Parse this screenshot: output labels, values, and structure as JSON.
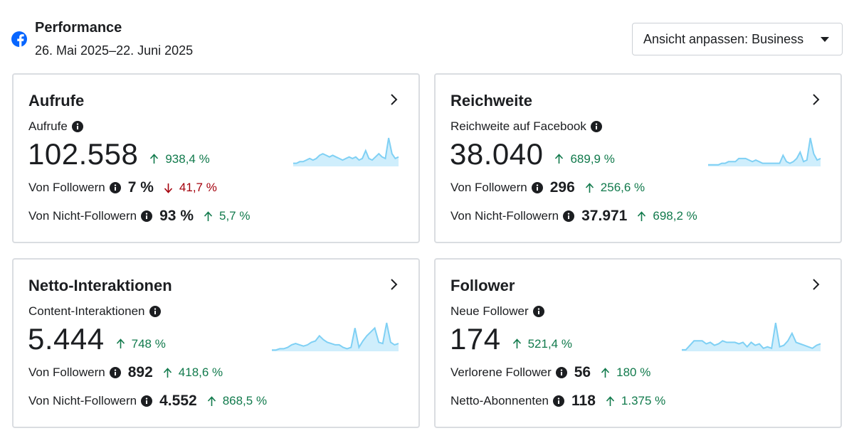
{
  "header": {
    "icon": "facebook-icon",
    "title": "Performance",
    "date_range": "26. Mai 2025–22. Juni 2025",
    "view_button": "Ansicht anpassen: Business"
  },
  "colors": {
    "up": "#117a4c",
    "down": "#a4000c",
    "spark_line": "#7fd0f4",
    "spark_fill": "#cfeefc",
    "facebook": "#0866ff"
  },
  "cards": [
    {
      "title": "Aufrufe",
      "metric_label": "Aufrufe",
      "value": "102.558",
      "delta": "938,4 %",
      "delta_dir": "up",
      "rows": [
        {
          "label": "Von Followern",
          "value": "7 %",
          "delta": "41,7 %",
          "dir": "down"
        },
        {
          "label": "Von Nicht-Followern",
          "value": "93 %",
          "delta": "5,7 %",
          "dir": "up"
        }
      ],
      "sparkline": [
        2,
        2,
        3,
        3,
        4,
        5,
        4,
        5,
        7,
        8,
        7,
        6,
        7,
        6,
        5,
        4,
        5,
        6,
        5,
        6,
        4,
        5,
        10,
        5,
        4,
        6,
        8,
        6,
        5,
        18,
        8,
        5,
        6
      ]
    },
    {
      "title": "Reichweite",
      "metric_label": "Reichweite auf Facebook",
      "value": "38.040",
      "delta": "689,9 %",
      "delta_dir": "up",
      "rows": [
        {
          "label": "Von Followern",
          "value": "296",
          "delta": "256,6 %",
          "dir": "up"
        },
        {
          "label": "Von Nicht-Followern",
          "value": "37.971",
          "delta": "698,2 %",
          "dir": "up"
        }
      ],
      "sparkline": [
        1,
        1,
        1,
        1,
        2,
        2,
        3,
        3,
        3,
        5,
        5,
        5,
        4,
        3,
        4,
        3,
        2,
        2,
        2,
        2,
        2,
        2,
        7,
        3,
        2,
        3,
        5,
        9,
        3,
        4,
        18,
        8,
        4,
        5
      ]
    },
    {
      "title": "Netto-Interaktionen",
      "metric_label": "Content-Interaktionen",
      "value": "5.444",
      "delta": "748 %",
      "delta_dir": "up",
      "rows": [
        {
          "label": "Von Followern",
          "value": "892",
          "delta": "418,6 %",
          "dir": "up"
        },
        {
          "label": "Von Nicht-Followern",
          "value": "4.552",
          "delta": "868,5 %",
          "dir": "up"
        }
      ],
      "sparkline": [
        1,
        1,
        2,
        2,
        3,
        5,
        6,
        5,
        4,
        5,
        7,
        8,
        12,
        9,
        7,
        6,
        5,
        5,
        3,
        2,
        3,
        18,
        3,
        8,
        12,
        15,
        18,
        7,
        6,
        22,
        7,
        5,
        6
      ]
    },
    {
      "title": "Follower",
      "metric_label": "Neue Follower",
      "value": "174",
      "delta": "521,4 %",
      "delta_dir": "up",
      "rows": [
        {
          "label": "Verlorene Follower",
          "value": "56",
          "delta": "180 %",
          "dir": "up"
        },
        {
          "label": "Netto-Abonnenten",
          "value": "118",
          "delta": "1.375 %",
          "dir": "up"
        }
      ],
      "sparkline": [
        1,
        1,
        4,
        7,
        7,
        7,
        5,
        6,
        4,
        5,
        7,
        6,
        6,
        6,
        5,
        6,
        3,
        6,
        4,
        5,
        2,
        3,
        2,
        19,
        3,
        4,
        7,
        12,
        6,
        5,
        4,
        3,
        2,
        4,
        5
      ]
    }
  ]
}
